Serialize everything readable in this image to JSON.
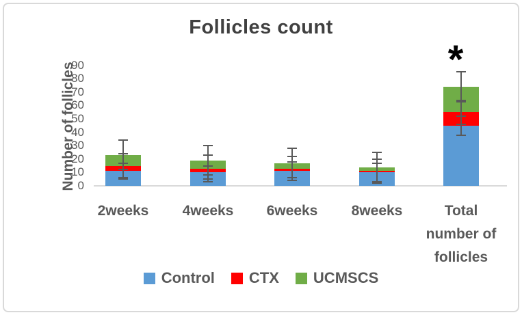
{
  "figure": {
    "significance_marker": "*"
  },
  "chart_data": {
    "type": "bar",
    "stacked": true,
    "title": "Follicles count",
    "xlabel": "",
    "ylabel": "Number of follicles",
    "ylim": [
      0,
      90
    ],
    "yticks": [
      0,
      10,
      20,
      30,
      40,
      50,
      60,
      70,
      80,
      90
    ],
    "grid": false,
    "categories": [
      "2weeks",
      "4weeks",
      "6weeks",
      "8weeks",
      "Total number of follicles"
    ],
    "series": [
      {
        "name": "Control",
        "color": "#5B9BD5",
        "values": [
          11,
          10,
          11,
          10,
          45
        ],
        "errors": [
          6,
          5,
          7,
          7,
          7
        ]
      },
      {
        "name": "CTX",
        "color": "#FF0000",
        "values": [
          4,
          3,
          2,
          1,
          10
        ],
        "errors": [
          9,
          10,
          9,
          9,
          9
        ]
      },
      {
        "name": "UCMSCS",
        "color": "#70AD47",
        "values": [
          8,
          6,
          4,
          3,
          19
        ],
        "errors": [
          11,
          11,
          11,
          11,
          11
        ]
      }
    ],
    "legend": [
      "Control",
      "CTX",
      "UCMSCS"
    ],
    "legend_position": "bottom",
    "annotations": [
      {
        "text": "*",
        "category": "Total number of follicles",
        "position": "above-error-bar"
      }
    ]
  },
  "colors": {
    "background": "#ffffff",
    "frame_border": "#d9d9d9",
    "axis_line": "#d9d9d9",
    "tick_text": "#595959",
    "label_text": "#595959",
    "title_text": "#404040",
    "error_bar": "#595959",
    "annotation": "#000000"
  }
}
